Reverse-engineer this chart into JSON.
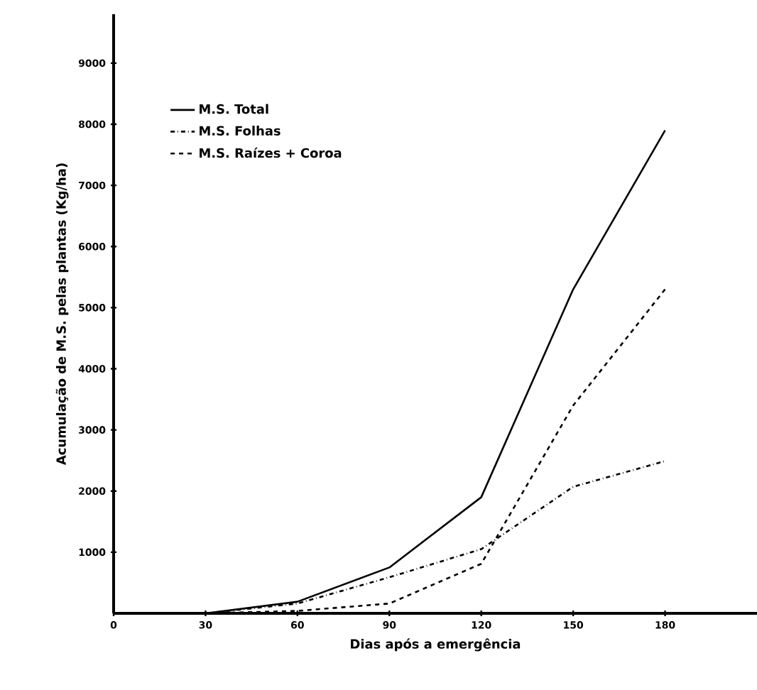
{
  "chart_data": {
    "type": "line",
    "xlabel": "Dias após a emergência",
    "ylabel": "Acumulação de M.S. pelas plantas (Kg/ha)",
    "x": [
      30,
      60,
      90,
      120,
      150,
      180
    ],
    "series": [
      {
        "name": "M.S. Total",
        "color": "#000000",
        "line_style": "solid",
        "values": [
          0,
          190,
          750,
          1900,
          5300,
          7900
        ]
      },
      {
        "name": "M.S. Folhas",
        "color": "#000000",
        "line_style": "dashdot",
        "values": [
          0,
          160,
          590,
          1050,
          2070,
          2490
        ]
      },
      {
        "name": "M.S. Raízes + Coroa",
        "color": "#000000",
        "line_style": "dashed",
        "values": [
          0,
          40,
          160,
          810,
          3400,
          5300
        ]
      }
    ],
    "xlim": [
      0,
      210
    ],
    "ylim": [
      0,
      9800
    ],
    "xticks": [
      0,
      30,
      60,
      90,
      120,
      150,
      180
    ],
    "yticks": [
      1000,
      2000,
      3000,
      4000,
      5000,
      6000,
      7000,
      8000,
      9000
    ],
    "grid": false,
    "legend": "top left",
    "marker": "none"
  }
}
